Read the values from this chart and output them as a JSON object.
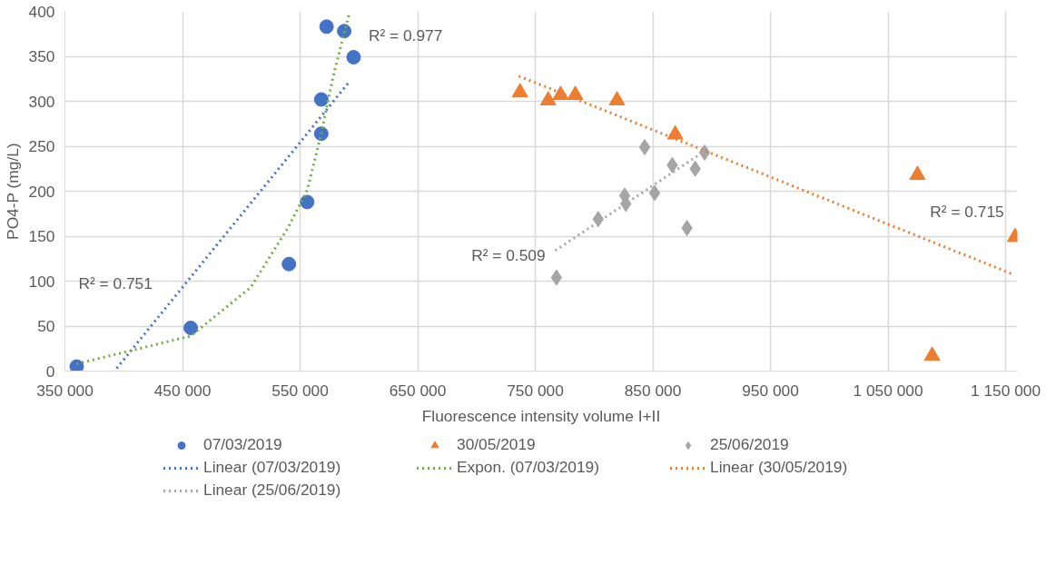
{
  "chart_data": {
    "type": "scatter",
    "xlabel": "Fluorescence intensity volume I+II",
    "ylabel": "PO4-P (mg/L)",
    "xlim": [
      350000,
      1160000
    ],
    "ylim": [
      0,
      400
    ],
    "xticks": [
      {
        "value": 350000,
        "label": "350 000"
      },
      {
        "value": 450000,
        "label": "450 000"
      },
      {
        "value": 550000,
        "label": "550 000"
      },
      {
        "value": 650000,
        "label": "650 000"
      },
      {
        "value": 750000,
        "label": "750 000"
      },
      {
        "value": 850000,
        "label": "850 000"
      },
      {
        "value": 950000,
        "label": "950 000"
      },
      {
        "value": 1050000,
        "label": "1 050 000"
      },
      {
        "value": 1150000,
        "label": "1 150 000"
      }
    ],
    "yticks": [
      0,
      50,
      100,
      150,
      200,
      250,
      300,
      350,
      400
    ],
    "grid": true,
    "legend": "bottom",
    "series": [
      {
        "name": "07/03/2019",
        "type": "scatter",
        "marker": "circle",
        "color": "#4472c4",
        "x": [
          360000,
          457000,
          540500,
          556000,
          568000,
          568000,
          572500,
          587500,
          595500
        ],
        "values": [
          5,
          48,
          119,
          188,
          264,
          302,
          383,
          378,
          349
        ]
      },
      {
        "name": "30/05/2019",
        "type": "scatter",
        "marker": "triangle",
        "color": "#ed7d31",
        "x": [
          737000,
          761000,
          771500,
          784000,
          819500,
          869000,
          1075000,
          1087500,
          1158000
        ],
        "values": [
          310,
          301,
          307,
          307,
          301,
          263,
          218,
          17,
          149
        ]
      },
      {
        "name": "25/06/2019",
        "type": "scatter",
        "marker": "diamond",
        "color": "#a5a5a5",
        "x": [
          843000,
          866500,
          886000,
          894000,
          851500,
          826000,
          827000,
          803500,
          879000,
          768000
        ],
        "values": [
          249,
          229,
          225,
          243,
          198,
          195,
          186,
          169,
          159,
          104
        ]
      },
      {
        "name": "Linear (07/03/2019)",
        "type": "line",
        "line_style": "dotted",
        "color": "#4472c4",
        "x": [
          394000,
          592000
        ],
        "values": [
          3,
          322
        ]
      },
      {
        "name": "Expon. (07/03/2019)",
        "type": "line",
        "line_style": "dotted",
        "color": "#70ad47",
        "x": [
          360000,
          457000,
          508000,
          540000,
          556000,
          568000,
          578000,
          592000
        ],
        "values": [
          8,
          39,
          93,
          160,
          201,
          264,
          327,
          399
        ]
      },
      {
        "name": "Linear (30/05/2019)",
        "type": "line",
        "line_style": "dotted",
        "color": "#ed7d31",
        "x": [
          736000,
          1155500
        ],
        "values": [
          328,
          108
        ]
      },
      {
        "name": "Linear (25/06/2019)",
        "type": "line",
        "line_style": "dotted",
        "color": "#a5a5a5",
        "x": [
          767000,
          894500
        ],
        "values": [
          134,
          245
        ]
      }
    ],
    "annotations": [
      "R² = 0.751",
      "R² = 0.977",
      "R² = 0.715",
      "R² = 0.509"
    ]
  }
}
